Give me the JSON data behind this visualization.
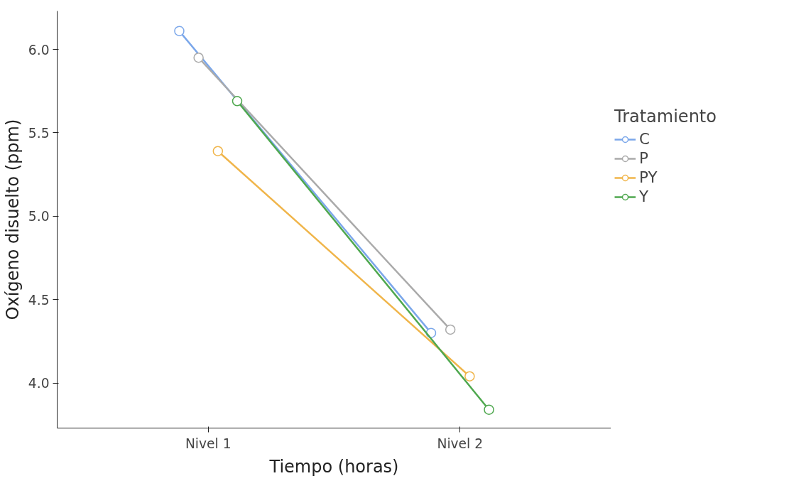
{
  "chart_data": {
    "type": "line",
    "xlabel": "Tiempo (horas)",
    "ylabel": "Oxígeno disuelto (ppm)",
    "legend_title": "Tratamiento",
    "categories": [
      "Nivel 1",
      "Nivel 2"
    ],
    "series": [
      {
        "name": "C",
        "color": "#7ba7ea",
        "values": [
          6.11,
          4.3
        ]
      },
      {
        "name": "P",
        "color": "#aaaaaa",
        "values": [
          5.95,
          4.32
        ]
      },
      {
        "name": "PY",
        "color": "#f0b54a",
        "values": [
          5.39,
          4.04
        ]
      },
      {
        "name": "Y",
        "color": "#4fa84f",
        "values": [
          5.69,
          3.84
        ]
      }
    ],
    "ylim": [
      3.73,
      6.23
    ],
    "yticks": [
      {
        "value": 4.0,
        "label": "4.0"
      },
      {
        "value": 4.5,
        "label": "4.5"
      },
      {
        "value": 5.0,
        "label": "5.0"
      },
      {
        "value": 5.5,
        "label": "5.5"
      },
      {
        "value": 6.0,
        "label": "6.0"
      }
    ],
    "grid": false,
    "legend": "right",
    "marker": "circle",
    "line_style": "solid"
  }
}
